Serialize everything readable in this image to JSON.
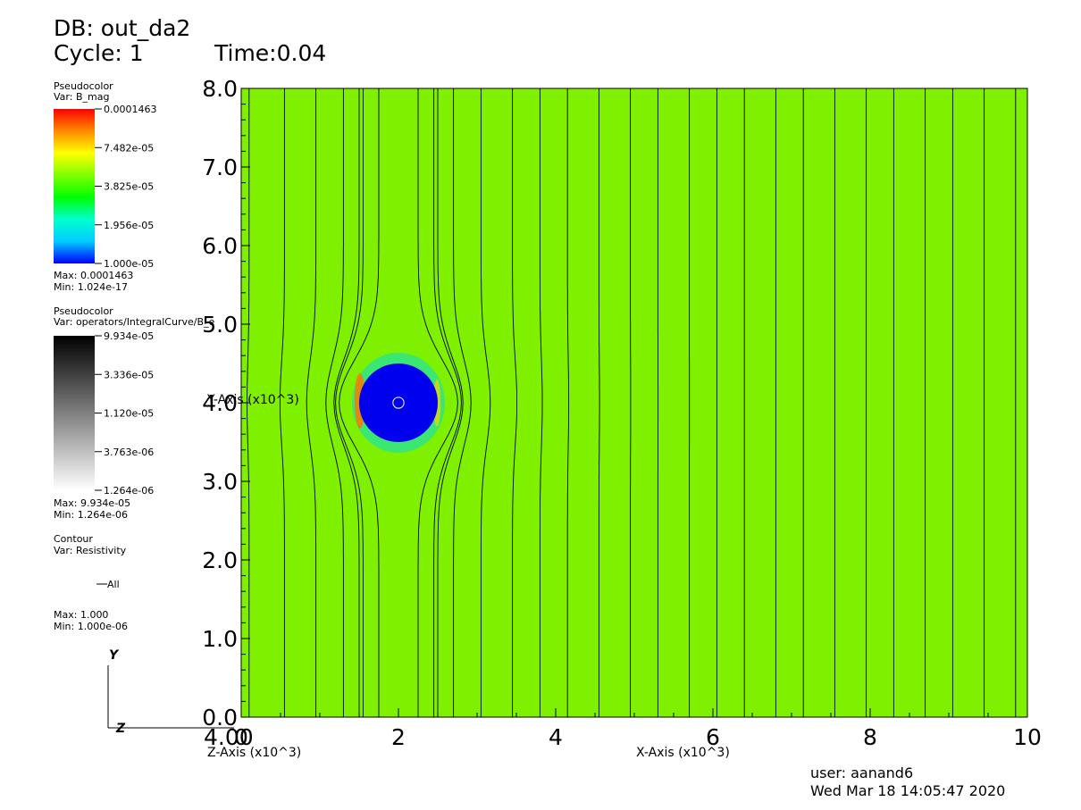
{
  "header": {
    "db": "DB: out_da2",
    "cycle": "Cycle: 1",
    "time": "Time:0.04"
  },
  "legend": {
    "pseudocolor1": {
      "title": "Pseudocolor",
      "var": "Var: B_mag",
      "ticks": [
        "0.0001463",
        "7.482e-05",
        "3.825e-05",
        "1.956e-05",
        "1.000e-05"
      ],
      "max": "Max:  0.0001463",
      "min": "Min:  1.024e-17",
      "colors": [
        "#ff0000",
        "#ff8a00",
        "#ffff00",
        "#80ff00",
        "#00ff00",
        "#00ffcc",
        "#00ccff",
        "#0000ff"
      ]
    },
    "pseudocolor2": {
      "title": "Pseudocolor",
      "var": "Var: operators/IntegralCurve/B_e",
      "ticks": [
        "9.934e-05",
        "3.336e-05",
        "1.120e-05",
        "3.763e-06",
        "1.264e-06"
      ],
      "max": "Max:  9.934e-05",
      "min": "Min:  1.264e-06",
      "colors": [
        "#000000",
        "#ffffff"
      ]
    },
    "contour": {
      "title": "Contour",
      "var": "Var: Resistivity",
      "item": "All",
      "max": "Max:  1.000",
      "min": "Min:  1.000e-06"
    }
  },
  "triad": {
    "y": "Y",
    "z": "Z"
  },
  "footer": {
    "user": "user: aanand6",
    "date": "Wed Mar 18 14:05:47 2020"
  },
  "chart_data": {
    "type": "heatmap",
    "title": "",
    "xlabel": "X-Axis (x10^3)",
    "ylabel": "Y-Axis (x10^3)",
    "zlabel": "Z-Axis (x10^3)",
    "x_ticks": [
      "0",
      "2",
      "4",
      "6",
      "8",
      "10"
    ],
    "x_tick_values": [
      0,
      2,
      4,
      6,
      8,
      10
    ],
    "y_ticks": [
      "0.0",
      "1.0",
      "2.0",
      "3.0",
      "4.0",
      "5.0",
      "6.0",
      "7.0",
      "8.0"
    ],
    "y_tick_values": [
      0,
      1,
      2,
      3,
      4,
      5,
      6,
      7,
      8
    ],
    "z_tick_overlap": "4.00",
    "xlim": [
      0,
      10
    ],
    "ylim": [
      0,
      8
    ],
    "field_background_color": "#7ff000",
    "obstacle": {
      "center_x": 2.0,
      "center_y": 4.0,
      "radius": 0.5,
      "color": "#0000ee",
      "inner_marker_radius": 0.07
    },
    "streamline_x": [
      0.1,
      0.55,
      0.95,
      1.3,
      1.5,
      2.5,
      2.7,
      3.05,
      3.45,
      3.8,
      4.15,
      4.55,
      4.95,
      5.3,
      5.7,
      6.05,
      6.4,
      6.8,
      7.15,
      7.55,
      7.95,
      8.3,
      8.7,
      9.05,
      9.45,
      9.85
    ],
    "streamlines_around_obstacle_x": [
      1.55,
      1.75,
      2.25,
      2.45
    ]
  }
}
